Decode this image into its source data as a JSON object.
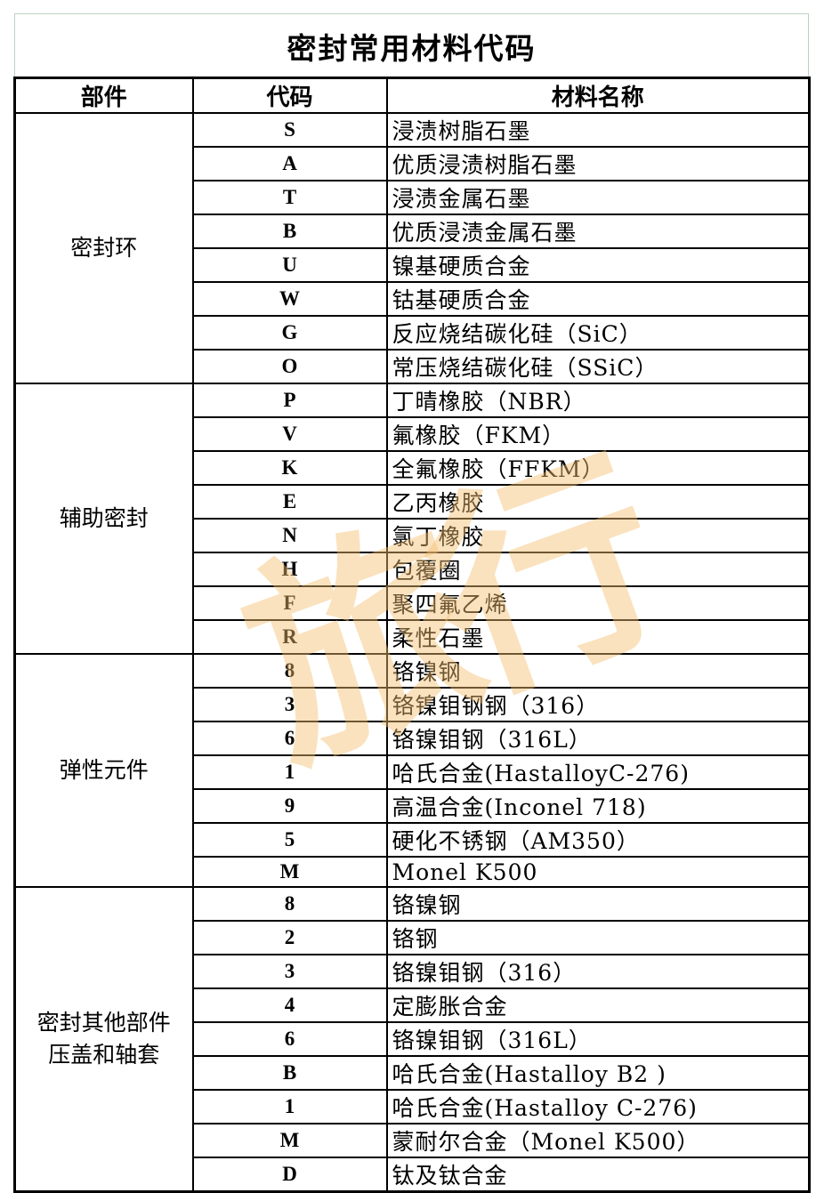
{
  "title": "密封常用材料代码",
  "headers": {
    "part": "部件",
    "code": "代码",
    "name": "材料名称"
  },
  "watermark": "旅行",
  "groups": [
    {
      "part": "密封环",
      "rows": [
        {
          "code": "S",
          "name": "浸渍树脂石墨"
        },
        {
          "code": "A",
          "name": "优质浸渍树脂石墨"
        },
        {
          "code": "T",
          "name": "浸渍金属石墨"
        },
        {
          "code": "B",
          "name": "优质浸渍金属石墨"
        },
        {
          "code": "U",
          "name": "镍基硬质合金"
        },
        {
          "code": "W",
          "name": "钴基硬质合金"
        },
        {
          "code": "G",
          "name": "反应烧结碳化硅（SiC）"
        },
        {
          "code": "O",
          "name": "常压烧结碳化硅（SSiC）"
        }
      ]
    },
    {
      "part": "辅助密封",
      "rows": [
        {
          "code": "P",
          "name": "丁晴橡胶（NBR）"
        },
        {
          "code": "V",
          "name": "氟橡胶（FKM）"
        },
        {
          "code": "K",
          "name": "全氟橡胶（FFKM）"
        },
        {
          "code": "E",
          "name": "乙丙橡胶"
        },
        {
          "code": "N",
          "name": "氯丁橡胶"
        },
        {
          "code": "H",
          "name": "包覆圈"
        },
        {
          "code": "F",
          "name": "聚四氟乙烯"
        },
        {
          "code": "R",
          "name": "柔性石墨"
        }
      ]
    },
    {
      "part": "弹性元件",
      "rows": [
        {
          "code": "8",
          "name": "铬镍钢"
        },
        {
          "code": "3",
          "name": "铬镍钼钢钢（316）"
        },
        {
          "code": "6",
          "name": "铬镍钼钢（316L）"
        },
        {
          "code": "1",
          "name": "哈氏合金(HastalloyC-276)"
        },
        {
          "code": "9",
          "name": "高温合金(Inconel 718)"
        },
        {
          "code": "5",
          "name": "硬化不锈钢（AM350）"
        },
        {
          "code": "M",
          "name": "Monel K500"
        }
      ]
    },
    {
      "part": "密封其他部件\n压盖和轴套",
      "rows": [
        {
          "code": "8",
          "name": "铬镍钢"
        },
        {
          "code": "2",
          "name": "铬钢"
        },
        {
          "code": "3",
          "name": "铬镍钼钢（316）"
        },
        {
          "code": "4",
          "name": "定膨胀合金"
        },
        {
          "code": "6",
          "name": "铬镍钼钢（316L）"
        },
        {
          "code": "B",
          "name": "哈氏合金(Hastalloy B2 )"
        },
        {
          "code": "1",
          "name": "哈氏合金(Hastalloy C-276)"
        },
        {
          "code": "M",
          "name": "蒙耐尔合金（Monel K500）"
        },
        {
          "code": "D",
          "name": "钛及钛合金"
        }
      ]
    }
  ]
}
